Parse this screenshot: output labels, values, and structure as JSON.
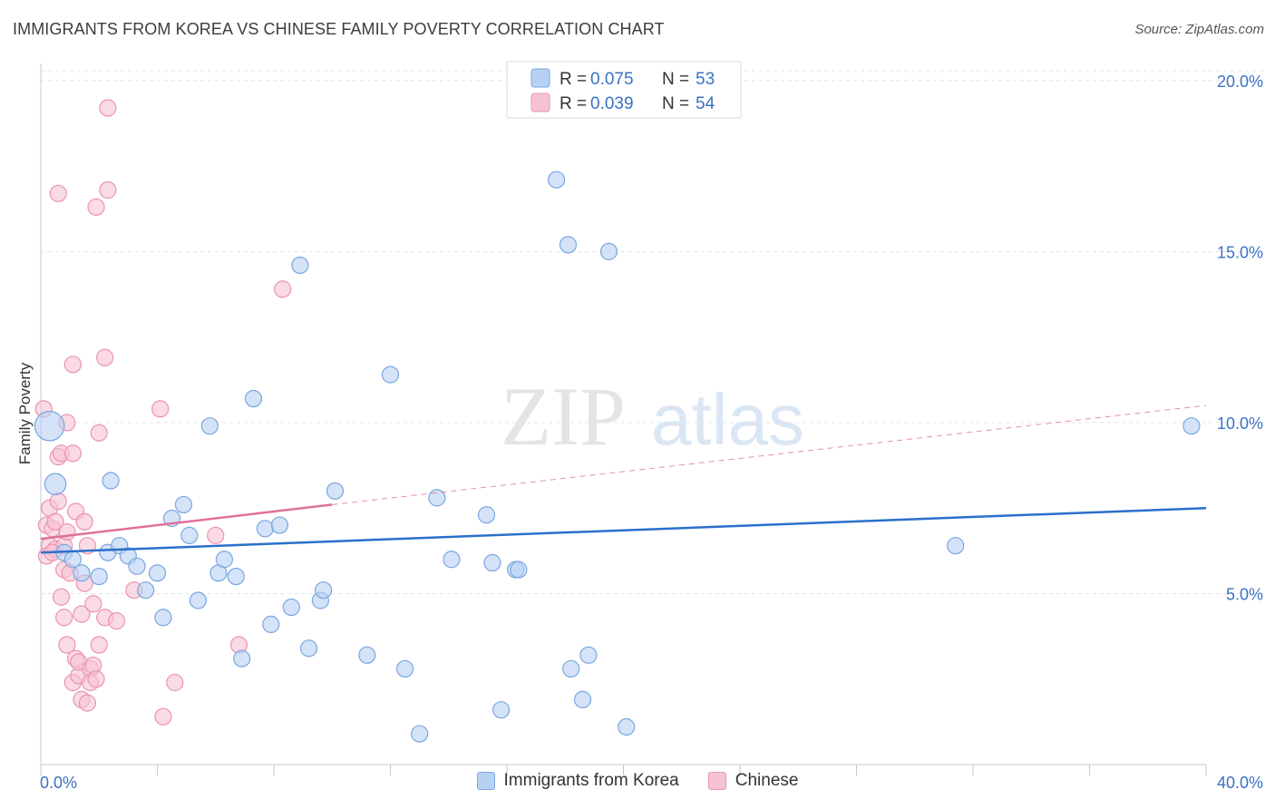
{
  "header": {
    "title": "IMMIGRANTS FROM KOREA VS CHINESE FAMILY POVERTY CORRELATION CHART",
    "source": "Source: ZipAtlas.com"
  },
  "watermark": {
    "zip": "ZIP",
    "atlas": "atlas"
  },
  "colors": {
    "blue_fill": "#b7d1f3",
    "blue_stroke": "#7aa6e0",
    "blue_line": "#2a6fcb",
    "pink_fill": "#f7c3d3",
    "pink_stroke": "#eb93b0",
    "pink_line": "#e0709a",
    "axis_text": "#3a72c4"
  },
  "chart_data": {
    "type": "scatter",
    "title": "IMMIGRANTS FROM KOREA VS CHINESE FAMILY POVERTY CORRELATION CHART",
    "xlabel": "",
    "ylabel": "Family Poverty",
    "xlim": [
      0,
      40
    ],
    "ylim": [
      0,
      20.5
    ],
    "x_tick_labels": [
      "0.0%",
      "40.0%"
    ],
    "y_ticks": [
      5,
      10,
      15,
      20
    ],
    "y_tick_labels": [
      "5.0%",
      "10.0%",
      "15.0%",
      "20.0%"
    ],
    "grid": true,
    "legend_position": "top-center",
    "legend": [
      {
        "r_label": "R =",
        "r_value": "0.075",
        "n_label": "N =",
        "n_value": "53"
      },
      {
        "r_label": "R =",
        "r_value": "0.039",
        "n_label": "N =",
        "n_value": "54"
      }
    ],
    "series": [
      {
        "name": "Immigrants from Korea",
        "trend": {
          "x": [
            0,
            40
          ],
          "y": [
            6.2,
            7.5
          ]
        },
        "points": [
          [
            0.3,
            9.9,
            1.8
          ],
          [
            0.5,
            8.2,
            1.3
          ],
          [
            0.8,
            6.2,
            1
          ],
          [
            1.1,
            6.0,
            1
          ],
          [
            1.4,
            5.6,
            1
          ],
          [
            2.0,
            5.5,
            1
          ],
          [
            2.4,
            8.3,
            1
          ],
          [
            2.3,
            6.2,
            1
          ],
          [
            2.7,
            6.4,
            1
          ],
          [
            3.0,
            6.1,
            1
          ],
          [
            3.3,
            5.8,
            1
          ],
          [
            3.6,
            5.1,
            1
          ],
          [
            4.0,
            5.6,
            1
          ],
          [
            4.2,
            4.3,
            1
          ],
          [
            4.5,
            7.2,
            1
          ],
          [
            4.9,
            7.6,
            1
          ],
          [
            5.1,
            6.7,
            1
          ],
          [
            5.4,
            4.8,
            1
          ],
          [
            5.8,
            9.9,
            1
          ],
          [
            6.1,
            5.6,
            1
          ],
          [
            6.3,
            6.0,
            1
          ],
          [
            6.7,
            5.5,
            1
          ],
          [
            6.9,
            3.1,
            1
          ],
          [
            7.3,
            10.7,
            1
          ],
          [
            7.7,
            6.9,
            1
          ],
          [
            7.9,
            4.1,
            1
          ],
          [
            8.2,
            7.0,
            1
          ],
          [
            8.6,
            4.6,
            1
          ],
          [
            8.9,
            14.6,
            1
          ],
          [
            9.2,
            3.4,
            1
          ],
          [
            9.6,
            4.8,
            1
          ],
          [
            9.7,
            5.1,
            1
          ],
          [
            10.1,
            8.0,
            1
          ],
          [
            11.2,
            3.2,
            1
          ],
          [
            12.0,
            11.4,
            1
          ],
          [
            12.5,
            2.8,
            1
          ],
          [
            13.0,
            0.9,
            1
          ],
          [
            13.6,
            7.8,
            1
          ],
          [
            14.1,
            6.0,
            1
          ],
          [
            15.3,
            7.3,
            1
          ],
          [
            15.5,
            5.9,
            1
          ],
          [
            15.8,
            1.6,
            1
          ],
          [
            16.3,
            5.7,
            1
          ],
          [
            16.4,
            5.7,
            1
          ],
          [
            17.7,
            17.1,
            1
          ],
          [
            18.1,
            15.2,
            1
          ],
          [
            18.2,
            2.8,
            1
          ],
          [
            18.6,
            1.9,
            1
          ],
          [
            18.8,
            3.2,
            1
          ],
          [
            19.5,
            15.0,
            1
          ],
          [
            20.1,
            1.1,
            1
          ],
          [
            31.4,
            6.4,
            1
          ],
          [
            39.5,
            9.9,
            1
          ]
        ]
      },
      {
        "name": "Chinese",
        "trend": {
          "x": [
            0,
            10
          ],
          "y": [
            6.6,
            7.6
          ]
        },
        "trend_extrapolated": {
          "x": [
            10,
            40
          ],
          "y": [
            7.6,
            10.5
          ]
        },
        "points": [
          [
            0.1,
            10.4,
            1
          ],
          [
            0.2,
            7.0,
            1
          ],
          [
            0.2,
            6.1,
            1
          ],
          [
            0.3,
            6.4,
            1
          ],
          [
            0.3,
            7.5,
            1
          ],
          [
            0.4,
            6.9,
            1
          ],
          [
            0.5,
            7.1,
            1
          ],
          [
            0.5,
            6.3,
            1
          ],
          [
            0.6,
            7.7,
            1
          ],
          [
            0.6,
            16.7,
            1
          ],
          [
            0.6,
            9.0,
            1
          ],
          [
            0.7,
            9.1,
            1
          ],
          [
            0.7,
            4.9,
            1
          ],
          [
            0.8,
            5.7,
            1
          ],
          [
            0.8,
            4.3,
            1
          ],
          [
            0.8,
            6.4,
            1
          ],
          [
            0.9,
            3.5,
            1
          ],
          [
            0.9,
            6.8,
            1
          ],
          [
            0.9,
            10.0,
            1
          ],
          [
            1.0,
            5.6,
            1
          ],
          [
            1.1,
            2.4,
            1
          ],
          [
            1.1,
            9.1,
            1
          ],
          [
            1.1,
            11.7,
            1
          ],
          [
            1.2,
            7.4,
            1
          ],
          [
            1.2,
            3.1,
            1
          ],
          [
            1.3,
            2.6,
            1
          ],
          [
            1.3,
            3.0,
            1
          ],
          [
            1.4,
            1.9,
            1
          ],
          [
            1.4,
            4.4,
            1
          ],
          [
            1.5,
            5.3,
            1
          ],
          [
            1.5,
            7.1,
            1
          ],
          [
            1.6,
            1.8,
            1
          ],
          [
            1.7,
            2.8,
            1
          ],
          [
            1.7,
            2.4,
            1
          ],
          [
            1.8,
            2.9,
            1
          ],
          [
            1.8,
            4.7,
            1
          ],
          [
            1.9,
            2.5,
            1
          ],
          [
            1.9,
            16.3,
            1
          ],
          [
            2.0,
            3.5,
            1
          ],
          [
            2.0,
            9.7,
            1
          ],
          [
            2.2,
            4.3,
            1
          ],
          [
            2.2,
            11.9,
            1
          ],
          [
            2.3,
            19.2,
            1
          ],
          [
            2.3,
            16.8,
            1
          ],
          [
            2.6,
            4.2,
            1
          ],
          [
            3.2,
            5.1,
            1
          ],
          [
            4.1,
            10.4,
            1
          ],
          [
            4.2,
            1.4,
            1
          ],
          [
            4.6,
            2.4,
            1
          ],
          [
            6.0,
            6.7,
            1
          ],
          [
            6.8,
            3.5,
            1
          ],
          [
            8.3,
            13.9,
            1
          ],
          [
            0.4,
            6.2,
            1
          ],
          [
            1.6,
            6.4,
            1
          ]
        ]
      }
    ]
  },
  "legend_bottom": {
    "korea_label": "Immigrants from Korea",
    "chinese_label": "Chinese"
  }
}
